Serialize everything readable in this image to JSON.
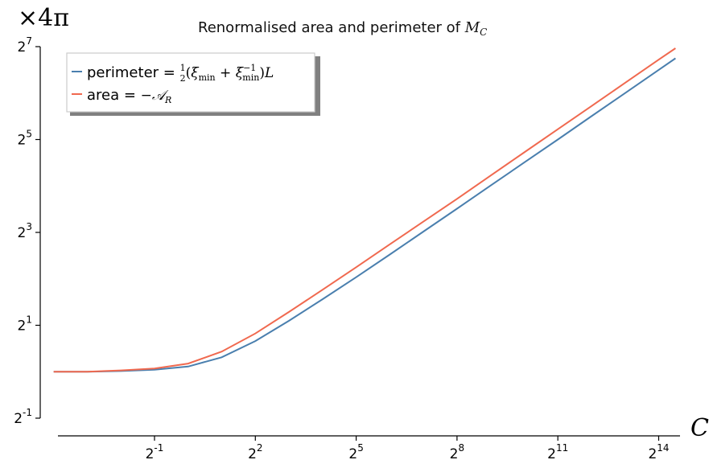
{
  "chart_data": {
    "type": "line",
    "title": "Renormalised area and perimeter of M_C",
    "title_text": "Renormalised area and perimeter of ",
    "title_math": "M",
    "title_math_sub": "C",
    "xlabel": "C",
    "ylabel": "×4π",
    "x_scale": "log2",
    "y_scale": "log2",
    "xlim_log2": [
      -4,
      15.2
    ],
    "ylim_log2": [
      -1,
      7
    ],
    "x_ticks": [
      {
        "base": "2",
        "exp": "-1",
        "value": 0.5
      },
      {
        "base": "2",
        "exp": "2",
        "value": 4
      },
      {
        "base": "2",
        "exp": "5",
        "value": 32
      },
      {
        "base": "2",
        "exp": "8",
        "value": 256
      },
      {
        "base": "2",
        "exp": "11",
        "value": 2048
      },
      {
        "base": "2",
        "exp": "14",
        "value": 16384
      }
    ],
    "y_ticks": [
      {
        "base": "2",
        "exp": "-1",
        "value": 0.5
      },
      {
        "base": "2",
        "exp": "1",
        "value": 2
      },
      {
        "base": "2",
        "exp": "3",
        "value": 8
      },
      {
        "base": "2",
        "exp": "5",
        "value": 32
      },
      {
        "base": "2",
        "exp": "7",
        "value": 128
      }
    ],
    "grid": false,
    "legend_position": "top-left",
    "series": [
      {
        "name": "perimeter = ½(ξmin + ξmin⁻¹)L",
        "color": "#4a7fae",
        "x": [
          0.0625,
          0.125,
          0.25,
          0.5,
          1,
          2,
          4,
          8,
          16,
          32,
          64,
          128,
          256,
          512,
          1024,
          2048,
          4096,
          8192,
          16384,
          23170
        ],
        "y": [
          1.0,
          1.0,
          1.01,
          1.03,
          1.08,
          1.24,
          1.58,
          2.14,
          2.95,
          4.1,
          5.75,
          8.1,
          11.4,
          16.1,
          22.7,
          32.0,
          45.3,
          64.0,
          90.5,
          107.6
        ]
      },
      {
        "name": "area = −𝒜R",
        "color": "#f0694f",
        "x": [
          0.0625,
          0.125,
          0.25,
          0.5,
          1,
          2,
          4,
          8,
          16,
          32,
          64,
          128,
          256,
          512,
          1024,
          2048,
          4096,
          8192,
          16384,
          23170
        ],
        "y": [
          1.0,
          1.0,
          1.02,
          1.05,
          1.13,
          1.35,
          1.77,
          2.44,
          3.4,
          4.76,
          6.7,
          9.4,
          13.2,
          18.7,
          26.4,
          37.3,
          52.7,
          74.5,
          105.4,
          125.0
        ]
      }
    ]
  },
  "legend": {
    "perimeter_label": "perimeter = ",
    "area_label": "area = "
  }
}
